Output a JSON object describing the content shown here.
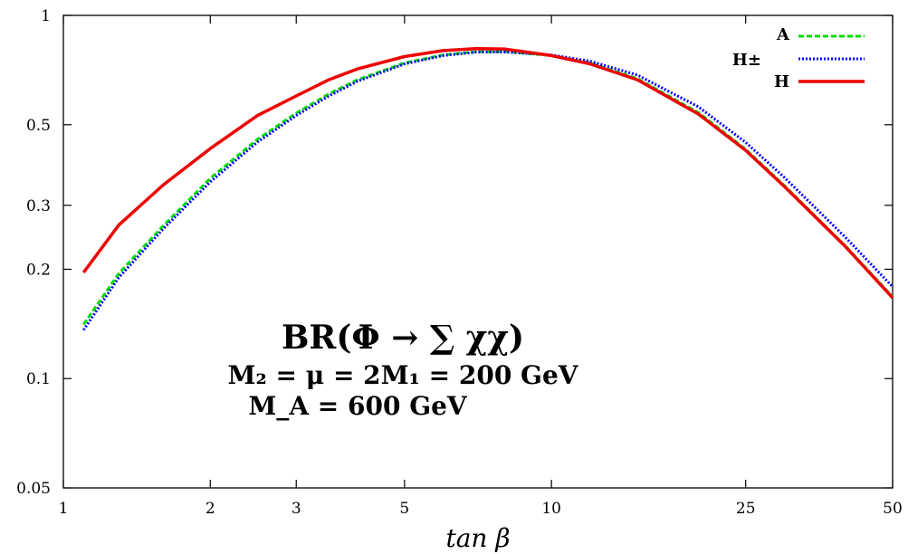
{
  "chart_data": {
    "type": "line",
    "title": "",
    "xlabel": "tan β",
    "ylabel": "",
    "x_scale": "log",
    "y_scale": "log",
    "xlim": [
      1,
      50
    ],
    "ylim": [
      0.05,
      1
    ],
    "x_ticks": [
      1,
      2,
      3,
      5,
      10,
      25,
      50
    ],
    "x_tick_labels": [
      "1",
      "2",
      "3",
      "5",
      "10",
      "25",
      "50"
    ],
    "y_ticks": [
      0.05,
      0.1,
      0.2,
      0.3,
      0.5,
      1
    ],
    "y_tick_labels": [
      "0.05",
      "0.1",
      "0.2",
      "0.3",
      "0.5",
      "1"
    ],
    "grid": false,
    "legend_position": "top-right",
    "series": [
      {
        "name": "A",
        "color": "#00dd00",
        "style": "dashed",
        "x": [
          1.1,
          1.3,
          1.6,
          2,
          2.5,
          3,
          3.5,
          4,
          5,
          6,
          7,
          8,
          10,
          12,
          15,
          20,
          25,
          30,
          40,
          50
        ],
        "y": [
          0.141,
          0.195,
          0.263,
          0.356,
          0.456,
          0.538,
          0.608,
          0.664,
          0.74,
          0.778,
          0.794,
          0.795,
          0.775,
          0.74,
          0.67,
          0.54,
          0.428,
          0.34,
          0.232,
          0.168
        ]
      },
      {
        "name": "H±",
        "color": "#0000ff",
        "style": "dotted",
        "x": [
          1.1,
          1.3,
          1.6,
          2,
          2.5,
          3,
          3.5,
          4,
          5,
          6,
          7,
          8,
          10,
          12,
          15,
          20,
          25,
          30,
          40,
          50
        ],
        "y": [
          0.136,
          0.19,
          0.258,
          0.348,
          0.448,
          0.53,
          0.6,
          0.658,
          0.735,
          0.775,
          0.792,
          0.793,
          0.778,
          0.748,
          0.685,
          0.56,
          0.447,
          0.358,
          0.245,
          0.179
        ]
      },
      {
        "name": "H",
        "color": "#ee0000",
        "style": "solid",
        "x": [
          1.1,
          1.3,
          1.6,
          2,
          2.5,
          3,
          3.5,
          4,
          5,
          6,
          7,
          8,
          10,
          12,
          15,
          20,
          25,
          30,
          40,
          50
        ],
        "y": [
          0.196,
          0.265,
          0.341,
          0.43,
          0.53,
          0.6,
          0.665,
          0.712,
          0.77,
          0.8,
          0.81,
          0.808,
          0.775,
          0.735,
          0.665,
          0.535,
          0.425,
          0.338,
          0.231,
          0.167
        ]
      }
    ],
    "annotations": [
      "BR(Φ → ∑ χχ)",
      "M₂ = μ = 2M₁ = 200 GeV",
      "M_A = 600 GeV"
    ]
  }
}
